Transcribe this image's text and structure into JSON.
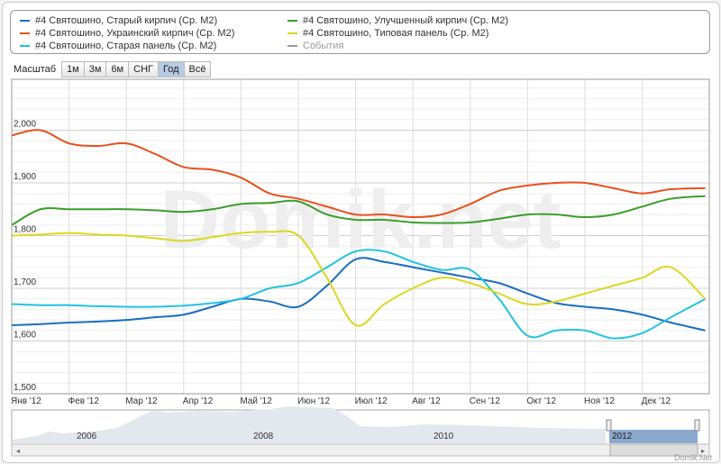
{
  "legend": [
    {
      "label": "#4 Святошино, Старый кирпич (Ср. M2)",
      "color": "#1a6fbf"
    },
    {
      "label": "#4 Святошино, Украинский кирпич (Ср. M2)",
      "color": "#e8501e"
    },
    {
      "label": "#4 Святошино, Старая панель (Ср. M2)",
      "color": "#22c3e0"
    },
    {
      "label": "#4 Святошино, Улучшенный кирпич (Ср. M2)",
      "color": "#3a9e2a"
    },
    {
      "label": "#4 Святошино, Типовая панель (Ср. M2)",
      "color": "#dcd820"
    },
    {
      "label": "События",
      "color": "#999999"
    }
  ],
  "zoom": {
    "label": "Масштаб",
    "buttons": [
      "1м",
      "3м",
      "6м",
      "СНГ",
      "Год",
      "Всё"
    ],
    "selected": "Год"
  },
  "watermark": "Domik.net",
  "credit": "Domik.Net",
  "navigator": {
    "years": [
      "2006",
      "2008",
      "2010",
      "2012"
    ]
  },
  "chart_data": {
    "type": "line",
    "x_unit": "month of 2012 (0 = 1 Jan)",
    "x_tick_labels": [
      "Янв '12",
      "Фев '12",
      "Мар '12",
      "Апр '12",
      "Май '12",
      "Июн '12",
      "Июл '12",
      "Авг '12",
      "Сен '12",
      "Окт '12",
      "Ноя '12",
      "Дек '12"
    ],
    "y_tick_labels": [
      "1,500",
      "1,600",
      "1,700",
      "1,800",
      "1,900",
      "2,000"
    ],
    "ylim": [
      1500,
      2100
    ],
    "grid": true,
    "legend_placement": "top",
    "x": [
      0,
      0.5,
      1,
      1.5,
      2,
      2.5,
      3,
      3.5,
      4,
      4.5,
      5,
      5.5,
      6,
      6.5,
      7,
      7.5,
      8,
      8.5,
      9,
      9.5,
      10,
      10.5,
      11,
      11.5,
      12.1
    ],
    "series": [
      {
        "name": "#4 Святошино, Старый кирпич (Ср. M2)",
        "values": [
          1630,
          1632,
          1635,
          1637,
          1640,
          1645,
          1650,
          1665,
          1680,
          1675,
          1665,
          1705,
          1755,
          1750,
          1740,
          1730,
          1720,
          1710,
          1690,
          1672,
          1665,
          1660,
          1650,
          1635,
          1620
        ]
      },
      {
        "name": "#4 Святошино, Украинский кирпич (Ср. M2)",
        "values": [
          1990,
          2000,
          1975,
          1970,
          1975,
          1955,
          1930,
          1925,
          1910,
          1880,
          1870,
          1855,
          1840,
          1840,
          1835,
          1840,
          1860,
          1885,
          1895,
          1900,
          1900,
          1890,
          1880,
          1888,
          1890
        ]
      },
      {
        "name": "#4 Святошино, Старая панель (Ср. M2)",
        "values": [
          1670,
          1668,
          1668,
          1666,
          1665,
          1665,
          1667,
          1672,
          1680,
          1700,
          1710,
          1740,
          1770,
          1770,
          1750,
          1735,
          1735,
          1680,
          1610,
          1620,
          1620,
          1605,
          1615,
          1645,
          1680
        ]
      },
      {
        "name": "#4 Святошино, Улучшенный кирпич (Ср. M2)",
        "values": [
          1820,
          1850,
          1850,
          1850,
          1850,
          1848,
          1845,
          1850,
          1860,
          1862,
          1865,
          1840,
          1830,
          1830,
          1825,
          1824,
          1825,
          1832,
          1840,
          1840,
          1835,
          1840,
          1855,
          1870,
          1875
        ]
      },
      {
        "name": "#4 Святошино, Типовая панель (Ср. M2)",
        "values": [
          1800,
          1802,
          1805,
          1802,
          1800,
          1795,
          1790,
          1797,
          1805,
          1807,
          1800,
          1720,
          1630,
          1670,
          1700,
          1720,
          1710,
          1690,
          1670,
          1675,
          1690,
          1705,
          1720,
          1740,
          1680
        ]
      }
    ]
  }
}
